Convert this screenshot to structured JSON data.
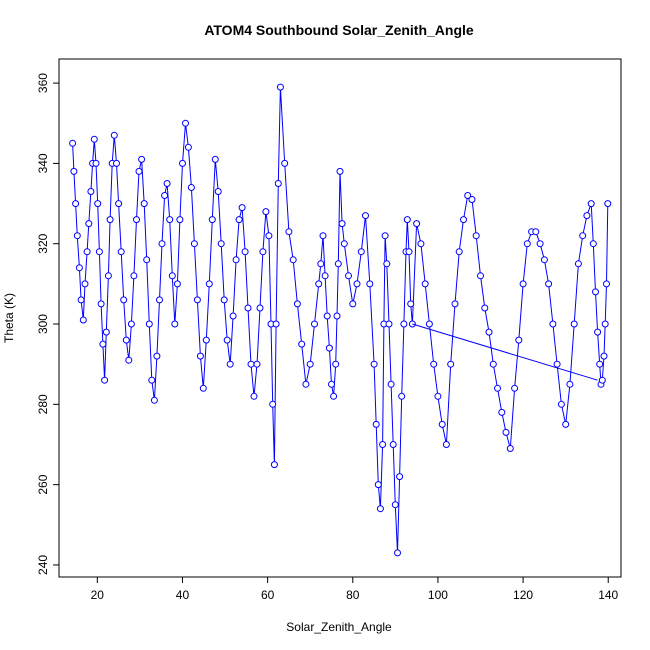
{
  "chart_data": {
    "type": "scatter",
    "title": "ATOM4 Southbound Solar_Zenith_Angle",
    "xlabel": "Solar_Zenith_Angle",
    "ylabel": "Theta (K)",
    "xlim": [
      11,
      143
    ],
    "ylim": [
      237,
      366
    ],
    "xticks": [
      20,
      40,
      60,
      80,
      100,
      120,
      140
    ],
    "yticks": [
      240,
      260,
      280,
      300,
      320,
      340,
      360
    ],
    "grid": false,
    "legend": "none",
    "series": [
      {
        "style": "points-and-lines",
        "color": "#0000ff",
        "x": [
          14.2,
          14.5,
          14.9,
          15.3,
          15.8,
          16.2,
          16.7,
          17.1,
          17.6,
          18.0,
          18.5,
          18.9,
          19.3,
          19.7,
          20.1,
          20.5,
          20.9,
          21.3,
          21.7,
          22.1,
          22.6,
          23.0,
          23.5,
          24.0,
          24.5,
          25.0,
          25.6,
          26.2,
          26.8,
          27.4,
          28.0,
          28.6,
          29.2,
          29.8,
          30.4,
          31.0,
          31.6,
          32.2,
          32.8,
          33.4,
          34.0,
          34.6,
          35.2,
          35.8,
          36.4,
          37.0,
          37.6,
          38.2,
          38.8,
          39.4,
          40.0,
          40.7,
          41.4,
          42.1,
          42.8,
          43.5,
          44.2,
          44.9,
          45.6,
          46.3,
          47.0,
          47.7,
          48.4,
          49.1,
          49.8,
          50.5,
          51.2,
          51.9,
          52.6,
          53.3,
          54.0,
          54.7,
          55.4,
          56.1,
          56.8,
          57.5,
          58.2,
          58.9,
          59.6,
          60.3,
          60.8,
          61.2,
          61.6,
          62.0,
          62.5,
          63.0,
          64.0,
          65.0,
          66.0,
          67.0,
          68.0,
          69.0,
          70.0,
          71.0,
          72.0,
          72.5,
          73.0,
          73.5,
          74.0,
          74.5,
          75.0,
          75.5,
          76.0,
          76.3,
          76.6,
          77.0,
          77.5,
          78.0,
          79.0,
          80.0,
          81.0,
          82.0,
          83.0,
          84.0,
          85.0,
          85.5,
          86.0,
          86.5,
          87.0,
          87.3,
          87.6,
          88.0,
          88.5,
          89.0,
          89.5,
          90.0,
          90.5,
          91.0,
          91.5,
          92.0,
          92.5,
          92.8,
          93.2,
          93.6,
          94.0,
          95.0,
          96.0,
          97.0,
          98.0,
          99.0,
          100.0,
          101.0,
          102.0,
          103.0,
          104.0,
          105.0,
          106.0,
          107.0,
          108.0,
          109.0,
          110.0,
          111.0,
          112.0,
          113.0,
          114.0,
          115.0,
          116.0,
          117.0,
          118.0,
          119.0,
          120.0,
          121.0,
          122.0,
          123.0,
          124.0,
          125.0,
          126.0,
          127.0,
          128.0,
          129.0,
          130.0,
          131.0,
          132.0,
          133.0,
          134.0,
          135.0,
          136.0,
          136.5,
          137.0,
          137.5,
          138.0,
          138.3,
          138.6,
          139.0,
          139.3,
          139.6,
          139.9
        ],
        "y": [
          345,
          338,
          330,
          322,
          314,
          306,
          301,
          310,
          318,
          325,
          333,
          340,
          346,
          340,
          330,
          318,
          305,
          295,
          286,
          298,
          312,
          326,
          340,
          347,
          340,
          330,
          318,
          306,
          296,
          291,
          300,
          312,
          326,
          338,
          341,
          330,
          316,
          300,
          286,
          281,
          292,
          306,
          320,
          332,
          335,
          326,
          312,
          300,
          310,
          326,
          340,
          350,
          344,
          334,
          320,
          306,
          292,
          284,
          296,
          310,
          326,
          341,
          333,
          320,
          306,
          296,
          290,
          302,
          316,
          326,
          329,
          318,
          304,
          290,
          282,
          290,
          304,
          318,
          328,
          322,
          300,
          280,
          265,
          300,
          335,
          359,
          340,
          323,
          316,
          305,
          295,
          285,
          290,
          300,
          310,
          315,
          322,
          312,
          302,
          294,
          285,
          282,
          290,
          302,
          315,
          338,
          325,
          320,
          312,
          305,
          310,
          318,
          327,
          310,
          290,
          275,
          260,
          254,
          270,
          300,
          322,
          315,
          300,
          285,
          270,
          255,
          243,
          262,
          282,
          300,
          318,
          326,
          318,
          305,
          300,
          325,
          320,
          310,
          300,
          290,
          282,
          275,
          270,
          290,
          305,
          318,
          326,
          332,
          331,
          322,
          312,
          304,
          298,
          290,
          284,
          278,
          273,
          269,
          284,
          296,
          310,
          320,
          323,
          323,
          320,
          316,
          310,
          300,
          290,
          280,
          275,
          285,
          300,
          315,
          322,
          327,
          330,
          320,
          308,
          298,
          290,
          285,
          286,
          292,
          300,
          310,
          330
        ]
      },
      {
        "style": "line",
        "color": "#0000ff",
        "x": [
          94.0,
          137.5
        ],
        "y": [
          300,
          286
        ]
      }
    ]
  }
}
